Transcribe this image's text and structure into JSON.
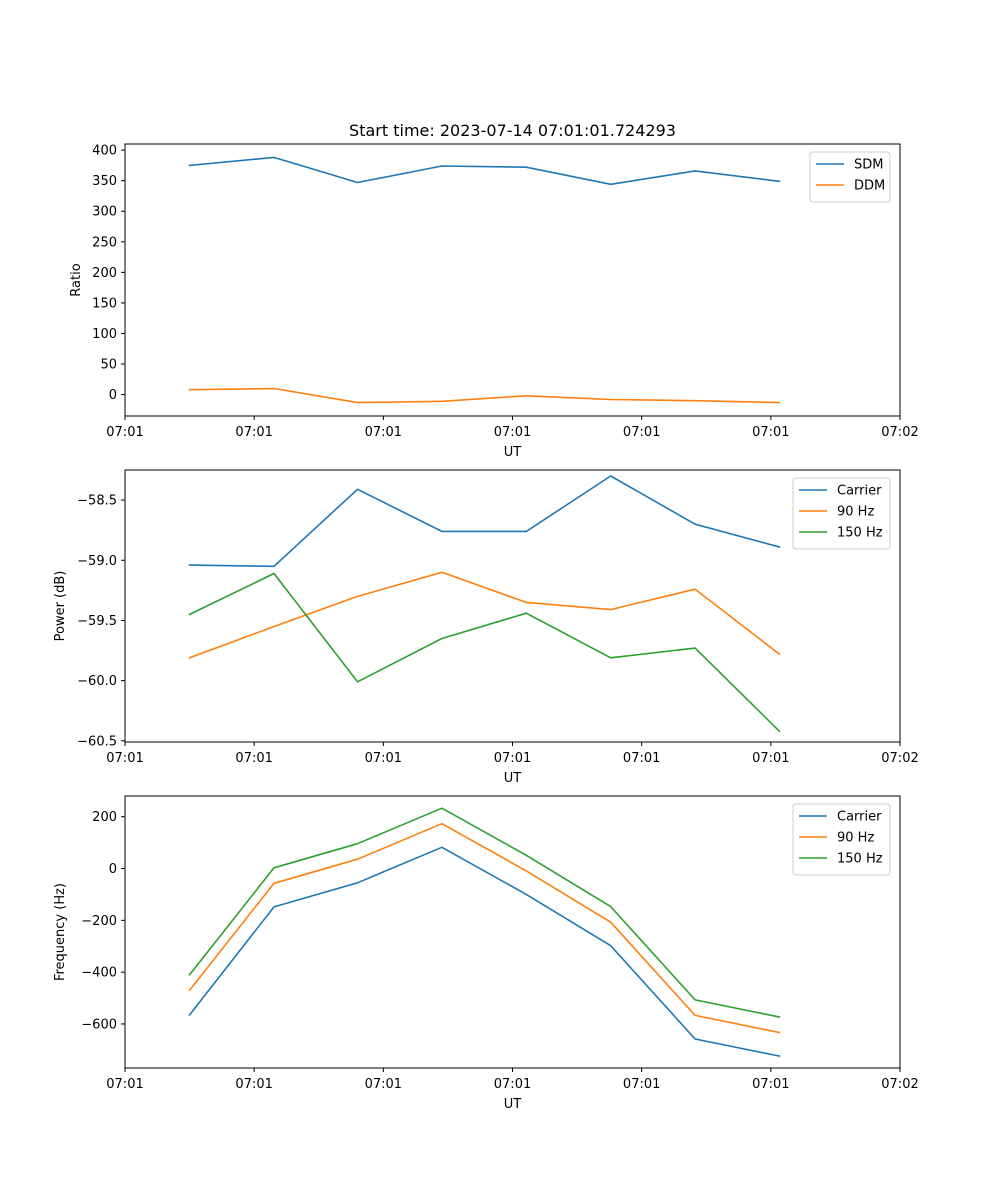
{
  "figure": {
    "title": "Start time: 2023-07-14 07:01:01.724293"
  },
  "chart_data": [
    {
      "type": "line",
      "title": "Start time: 2023-07-14 07:01:01.724293",
      "xlabel": "UT",
      "ylabel": "Ratio",
      "xlim": [
        0,
        9
      ],
      "ylim": [
        -35,
        410
      ],
      "x_ticks": [
        0,
        1.5,
        3,
        4.5,
        6,
        7.5,
        9
      ],
      "x_tick_labels": [
        "07:01",
        "07:01",
        "07:01",
        "07:01",
        "07:01",
        "07:01",
        "07:02"
      ],
      "y_ticks": [
        0,
        50,
        100,
        150,
        200,
        250,
        300,
        350,
        400
      ],
      "y_tick_labels": [
        "0",
        "50",
        "100",
        "150",
        "200",
        "250",
        "300",
        "350",
        "400"
      ],
      "x": [
        0.75,
        1.73,
        2.7,
        3.68,
        4.66,
        5.64,
        6.62,
        7.6
      ],
      "series": [
        {
          "name": "SDM",
          "color": "#1f77b4",
          "values": [
            375,
            388,
            347,
            374,
            372,
            344,
            366,
            349
          ]
        },
        {
          "name": "DDM",
          "color": "#ff7f0e",
          "values": [
            8,
            10,
            -13,
            -11,
            -2,
            -8,
            -10,
            -13
          ]
        }
      ],
      "legend": "top-right"
    },
    {
      "type": "line",
      "title": "",
      "xlabel": "UT",
      "ylabel": "Power (dB)",
      "xlim": [
        0,
        9
      ],
      "ylim": [
        -60.51,
        -58.25
      ],
      "x_ticks": [
        0,
        1.5,
        3,
        4.5,
        6,
        7.5,
        9
      ],
      "x_tick_labels": [
        "07:01",
        "07:01",
        "07:01",
        "07:01",
        "07:01",
        "07:01",
        "07:02"
      ],
      "y_ticks": [
        -60.5,
        -60.0,
        -59.5,
        -59.0,
        -58.5
      ],
      "y_tick_labels": [
        "−60.5",
        "−60.0",
        "−59.5",
        "−59.0",
        "−58.5"
      ],
      "x": [
        0.75,
        1.73,
        2.7,
        3.68,
        4.66,
        5.64,
        6.62,
        7.6
      ],
      "series": [
        {
          "name": "Carrier",
          "color": "#1f77b4",
          "values": [
            -59.04,
            -59.05,
            -58.41,
            -58.76,
            -58.76,
            -58.3,
            -58.7,
            -58.89
          ]
        },
        {
          "name": "90 Hz",
          "color": "#ff7f0e",
          "values": [
            -59.81,
            -59.55,
            -59.3,
            -59.1,
            -59.35,
            -59.41,
            -59.24,
            -59.78
          ]
        },
        {
          "name": "150 Hz",
          "color": "#2ca02c",
          "values": [
            -59.45,
            -59.11,
            -60.01,
            -59.65,
            -59.44,
            -59.81,
            -59.73,
            -60.42
          ]
        }
      ],
      "legend": "top-right"
    },
    {
      "type": "line",
      "title": "",
      "xlabel": "UT",
      "ylabel": "Frequency (Hz)",
      "xlim": [
        0,
        9
      ],
      "ylim": [
        -770,
        280
      ],
      "x_ticks": [
        0,
        1.5,
        3,
        4.5,
        6,
        7.5,
        9
      ],
      "x_tick_labels": [
        "07:01",
        "07:01",
        "07:01",
        "07:01",
        "07:01",
        "07:01",
        "07:02"
      ],
      "y_ticks": [
        -600,
        -400,
        -200,
        0,
        200
      ],
      "y_tick_labels": [
        "−600",
        "−400",
        "−200",
        "0",
        "200"
      ],
      "x": [
        0.75,
        1.73,
        2.7,
        3.68,
        4.66,
        5.64,
        6.62,
        7.6
      ],
      "series": [
        {
          "name": "Carrier",
          "color": "#1f77b4",
          "values": [
            -565,
            -148,
            -55,
            82,
            -100,
            -298,
            -658,
            -724
          ]
        },
        {
          "name": "90 Hz",
          "color": "#ff7f0e",
          "values": [
            -470,
            -57,
            36,
            173,
            -9,
            -207,
            -567,
            -633
          ]
        },
        {
          "name": "150 Hz",
          "color": "#2ca02c",
          "values": [
            -410,
            3,
            96,
            233,
            51,
            -147,
            -507,
            -573
          ]
        }
      ],
      "legend": "top-right"
    }
  ]
}
